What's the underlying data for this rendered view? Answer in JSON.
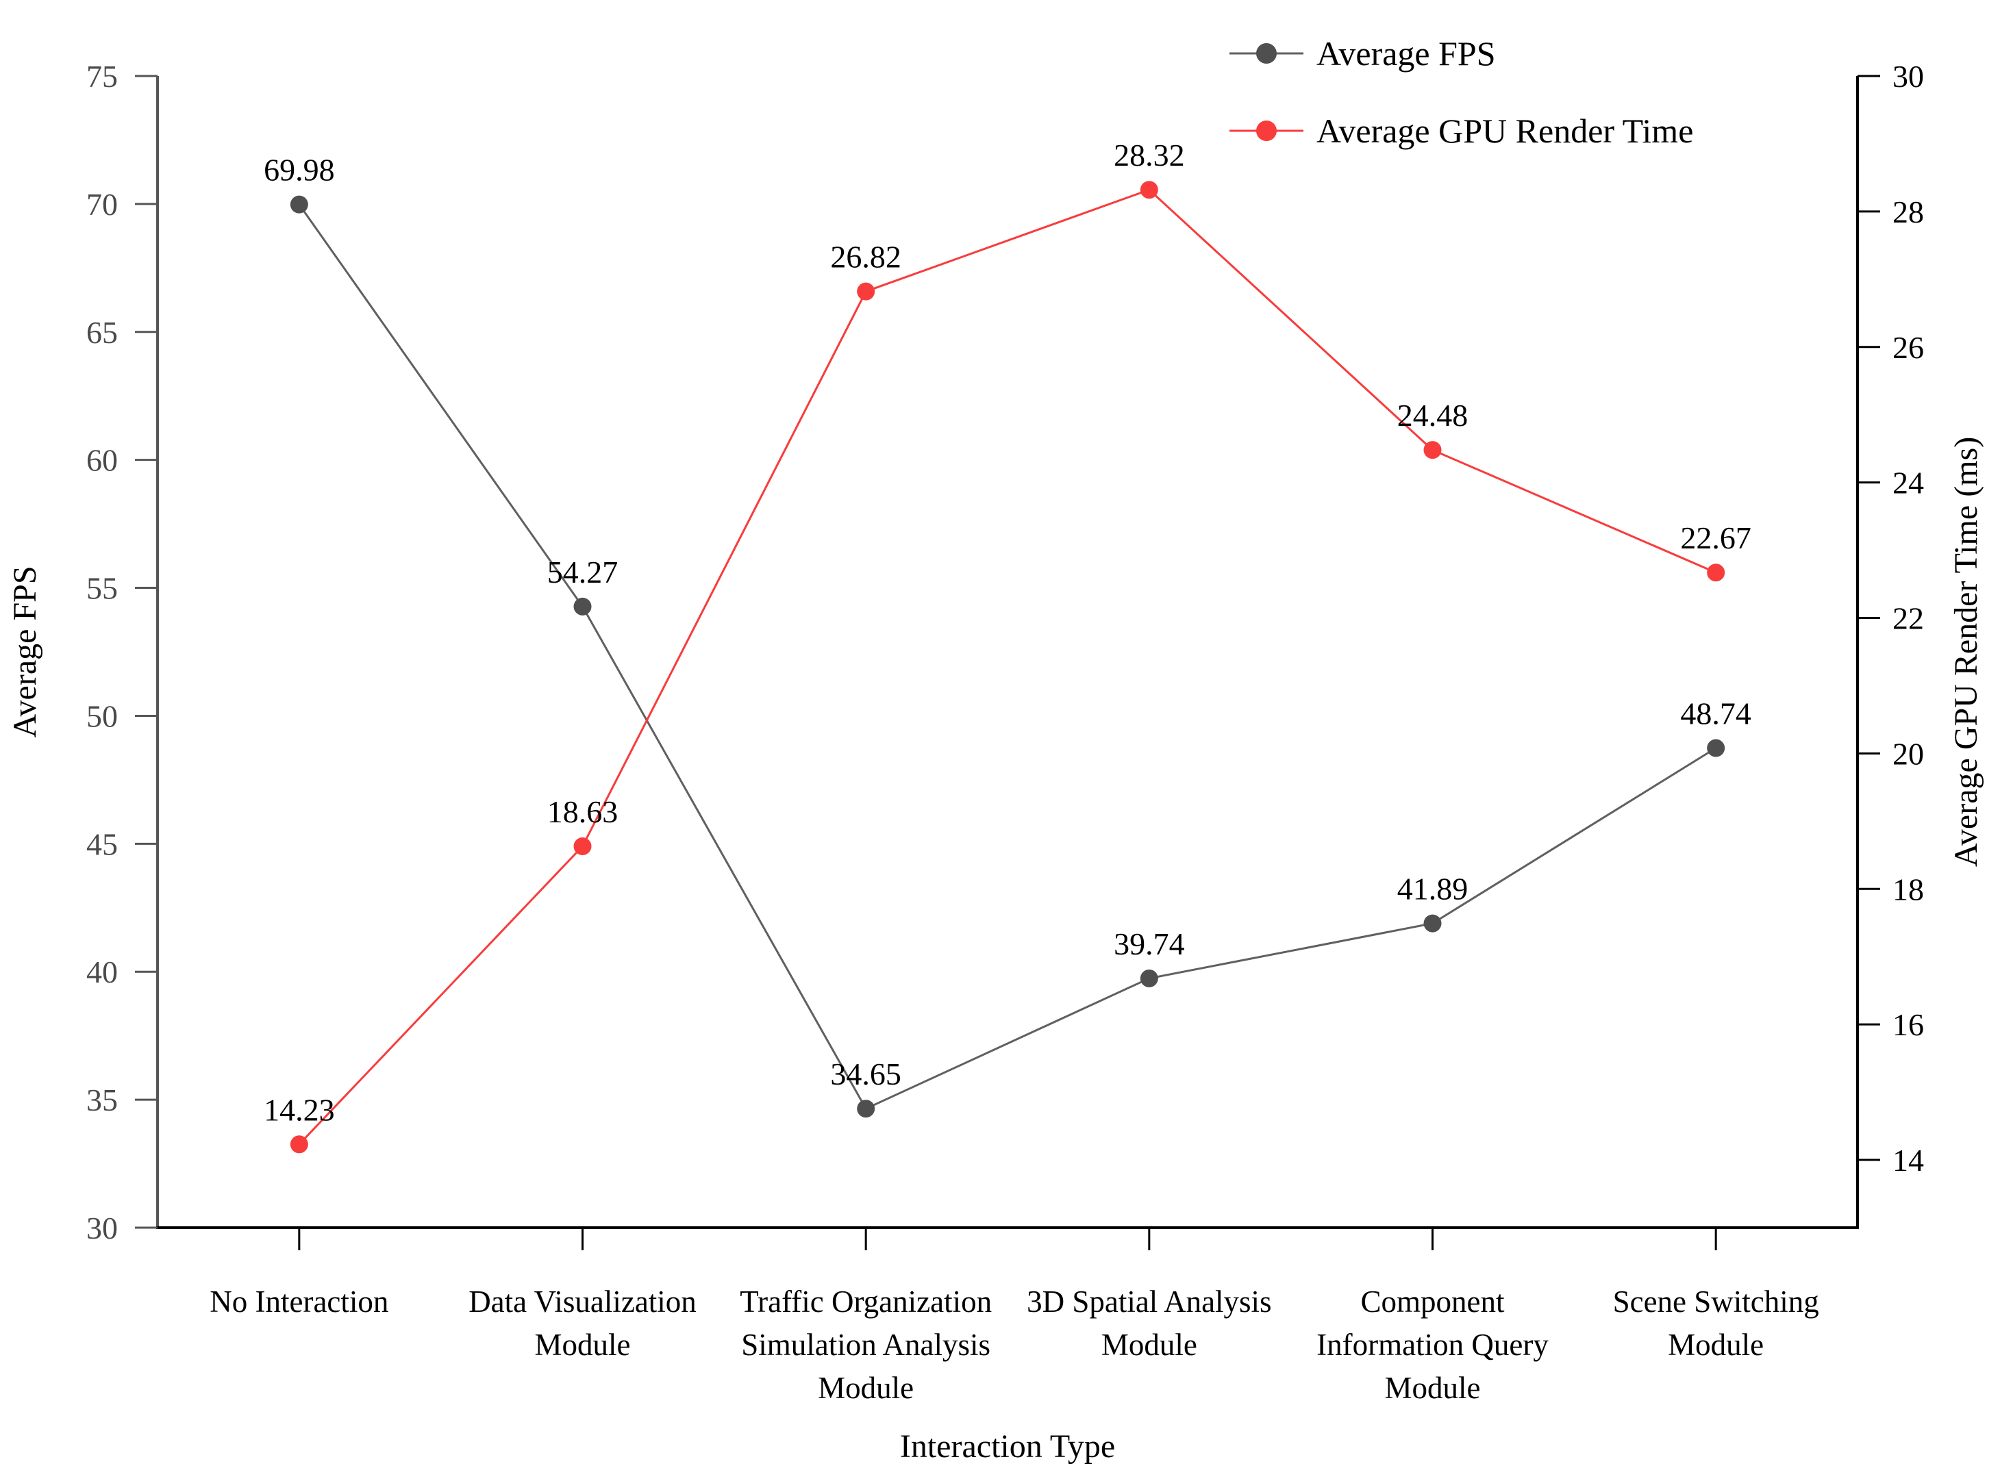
{
  "chart_data": {
    "type": "line",
    "title": "",
    "xlabel": "Interaction Type",
    "grid": false,
    "legend": {
      "position": "top-right",
      "items": [
        "Average FPS",
        "Average GPU Render Time"
      ]
    },
    "left_axis": {
      "label": "Average FPS",
      "min": 30,
      "max": 75,
      "tick_step": 5,
      "ticks": [
        75,
        70,
        65,
        60,
        55,
        50,
        45,
        40,
        35,
        30
      ],
      "color": "#565656",
      "tick_label_color": "#4a4a4a"
    },
    "right_axis": {
      "label": "Average GPU Render Time (ms)",
      "min": 13,
      "max": 30,
      "tick_step": 2,
      "ticks": [
        30,
        28,
        26,
        24,
        22,
        20,
        18,
        16,
        14
      ],
      "color": "#000000",
      "tick_label_color": "#000000"
    },
    "categories": [
      [
        "No Interaction"
      ],
      [
        "Data Visualization",
        "Module"
      ],
      [
        "Traffic Organization",
        "Simulation Analysis",
        "Module"
      ],
      [
        "3D Spatial Analysis",
        "Module"
      ],
      [
        "Component",
        "Information Query",
        "Module"
      ],
      [
        "Scene Switching",
        "Module"
      ]
    ],
    "series": [
      {
        "name": "Average FPS",
        "axis": "left",
        "marker_color": "#4f4f4f",
        "line_color": "#606060",
        "values": [
          69.98,
          54.27,
          34.65,
          39.74,
          41.89,
          48.74
        ],
        "labels": [
          "69.98",
          "54.27",
          "34.65",
          "39.74",
          "41.89",
          "48.74"
        ]
      },
      {
        "name": "Average GPU Render Time",
        "axis": "right",
        "marker_color": "#f83c3c",
        "line_color": "#f83c3c",
        "values": [
          14.23,
          18.63,
          26.82,
          28.32,
          24.48,
          22.67
        ],
        "labels": [
          "14.23",
          "18.63",
          "26.82",
          "28.32",
          "24.48",
          "22.67"
        ]
      }
    ],
    "data_label_color": "#000000"
  }
}
